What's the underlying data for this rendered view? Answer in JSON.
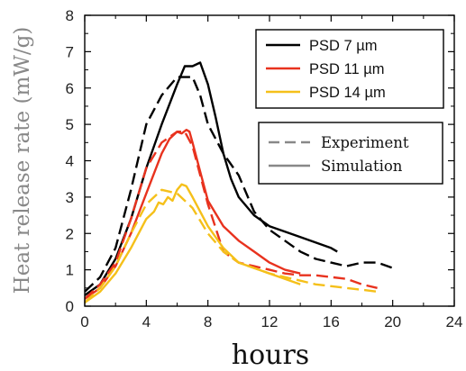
{
  "chart_data": {
    "type": "line",
    "xlabel": "hours",
    "ylabel": "Heat release rate (mW/g)",
    "xlim": [
      0,
      24
    ],
    "ylim": [
      0,
      8
    ],
    "xticks": [
      0,
      4,
      8,
      12,
      16,
      20,
      24
    ],
    "yticks": [
      0,
      1,
      2,
      3,
      4,
      5,
      6,
      7,
      8
    ],
    "grid": false,
    "legend_psd": {
      "placement": "top-right",
      "entries": [
        {
          "label": "PSD  7 µm",
          "color": "#000000"
        },
        {
          "label": "PSD 11 µm",
          "color": "#e8321e"
        },
        {
          "label": "PSD 14 µm",
          "color": "#f5c01a"
        }
      ]
    },
    "legend_style": {
      "placement": "right",
      "entries": [
        {
          "label": "Experiment",
          "dash": "dashed"
        },
        {
          "label": "Simulation",
          "dash": "solid"
        }
      ]
    },
    "series": [
      {
        "psd": "7",
        "kind": "Simulation",
        "color": "#000000",
        "dashed": false,
        "x": [
          0,
          1,
          2,
          3,
          4,
          5,
          6,
          6.5,
          7,
          7.5,
          8,
          8.5,
          9,
          9.5,
          10,
          11,
          12,
          14,
          16,
          16.4
        ],
        "y": [
          0.3,
          0.6,
          1.3,
          2.4,
          3.8,
          5.0,
          6.1,
          6.6,
          6.6,
          6.7,
          6.1,
          5.2,
          4.2,
          3.5,
          3.0,
          2.5,
          2.2,
          1.9,
          1.6,
          1.5
        ]
      },
      {
        "psd": "7",
        "kind": "Experiment",
        "color": "#000000",
        "dashed": true,
        "x": [
          0,
          1,
          2,
          3,
          4,
          5,
          6,
          7,
          7.5,
          8,
          9,
          10,
          11,
          12,
          13,
          14,
          15,
          16,
          17,
          18,
          19,
          20
        ],
        "y": [
          0.4,
          0.8,
          1.6,
          3.2,
          5.0,
          5.8,
          6.3,
          6.3,
          5.8,
          5.0,
          4.2,
          3.6,
          2.6,
          2.1,
          1.8,
          1.5,
          1.3,
          1.2,
          1.1,
          1.2,
          1.2,
          1.05
        ]
      },
      {
        "psd": "11",
        "kind": "Simulation",
        "color": "#e8321e",
        "dashed": false,
        "x": [
          0,
          1,
          2,
          3,
          4,
          5,
          5.5,
          6,
          6.3,
          6.6,
          6.8,
          7,
          7.5,
          8,
          9,
          10,
          11,
          12,
          13,
          14
        ],
        "y": [
          0.2,
          0.5,
          1.1,
          2.0,
          3.1,
          4.2,
          4.6,
          4.8,
          4.75,
          4.85,
          4.8,
          4.5,
          3.7,
          2.9,
          2.2,
          1.8,
          1.5,
          1.2,
          1.0,
          0.9
        ]
      },
      {
        "psd": "11",
        "kind": "Experiment",
        "color": "#e8321e",
        "dashed": true,
        "x": [
          0,
          1,
          2,
          3,
          4,
          5,
          6,
          6.5,
          7,
          8,
          9,
          10,
          11,
          12,
          13,
          14,
          15,
          16,
          17,
          18,
          19
        ],
        "y": [
          0.2,
          0.6,
          1.2,
          2.4,
          3.8,
          4.5,
          4.8,
          4.8,
          4.4,
          2.8,
          1.5,
          1.2,
          1.1,
          1.0,
          0.9,
          0.85,
          0.85,
          0.8,
          0.75,
          0.6,
          0.5
        ]
      },
      {
        "psd": "14",
        "kind": "Simulation",
        "color": "#f5c01a",
        "dashed": false,
        "x": [
          0,
          1,
          2,
          3,
          4,
          4.5,
          4.8,
          5.1,
          5.4,
          5.7,
          6,
          6.3,
          6.6,
          7,
          8,
          9,
          10,
          12,
          14
        ],
        "y": [
          0.1,
          0.4,
          0.9,
          1.6,
          2.4,
          2.6,
          2.85,
          2.8,
          3.0,
          2.9,
          3.2,
          3.35,
          3.3,
          3.0,
          2.2,
          1.6,
          1.2,
          0.9,
          0.6
        ]
      },
      {
        "psd": "14",
        "kind": "Experiment",
        "color": "#f5c01a",
        "dashed": true,
        "x": [
          0,
          1,
          2,
          3,
          4,
          5,
          6,
          7,
          8,
          9,
          10,
          11,
          12,
          13,
          14,
          15,
          16,
          17,
          18,
          19
        ],
        "y": [
          0.1,
          0.5,
          1.1,
          2.0,
          2.8,
          3.2,
          3.1,
          2.7,
          2.0,
          1.5,
          1.2,
          1.05,
          0.9,
          0.8,
          0.7,
          0.6,
          0.55,
          0.5,
          0.45,
          0.4
        ]
      }
    ]
  }
}
